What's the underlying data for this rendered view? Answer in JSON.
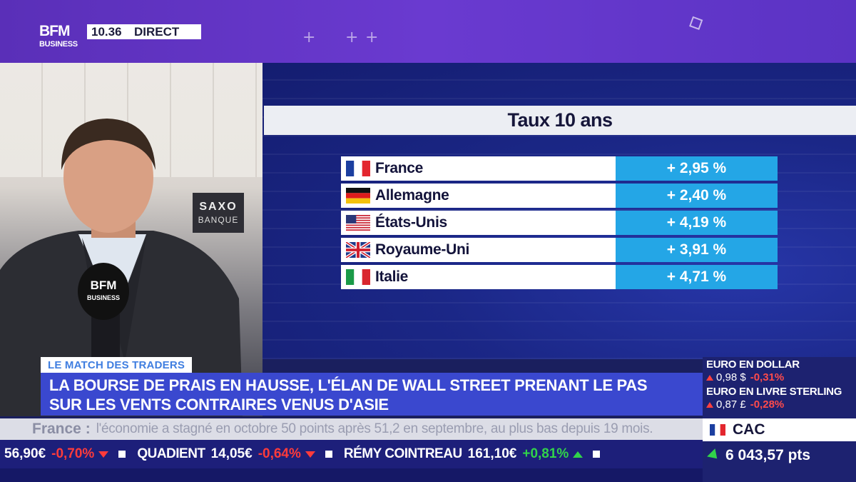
{
  "channel": {
    "logo_line1": "BFM",
    "logo_line2": "BUSINESS",
    "time": "10.36",
    "live": "DIRECT"
  },
  "studio": {
    "sign_line1": "SAXO",
    "sign_line2": "BANQUE",
    "mic_line1": "BFM",
    "mic_line2": "BUSINESS"
  },
  "rates_panel": {
    "title": "Taux 10 ans",
    "rows": [
      {
        "country": "France",
        "flag": "france-flag-icon",
        "value": "+ 2,95 %"
      },
      {
        "country": "Allemagne",
        "flag": "germany-flag-icon",
        "value": "+ 2,40 %"
      },
      {
        "country": "États-Unis",
        "flag": "usa-flag-icon",
        "value": "+ 4,19 %"
      },
      {
        "country": "Royaume-Uni",
        "flag": "uk-flag-icon",
        "value": "+ 3,91 %"
      },
      {
        "country": "Italie",
        "flag": "italy-flag-icon",
        "value": "+ 4,71 %"
      }
    ]
  },
  "lower_third": {
    "tag": "LE MATCH DES TRADERS",
    "headline_line1": "LA BOURSE DE PRAIS EN HAUSSE, L'ÉLAN DE WALL STREET PRENANT LE PAS",
    "headline_line2": "SUR LES VENTS CONTRAIRES VENUS D'ASIE"
  },
  "crawl": {
    "keyword": "France :",
    "text": "l'économie a stagné en octobre 50 points après 51,2 en septembre, au plus bas depuis 19 mois."
  },
  "ticker": [
    {
      "name": "",
      "price": "56,90€",
      "change": "-0,70%",
      "direction": "down"
    },
    {
      "name": "QUADIENT",
      "price": "14,05€",
      "change": "-0,64%",
      "direction": "down"
    },
    {
      "name": "RÉMY COINTREAU",
      "price": "161,10€",
      "change": "+0,81%",
      "direction": "up"
    }
  ],
  "market": {
    "eur_usd": {
      "title": "EURO EN DOLLAR",
      "value": "0,98 $",
      "change": "-0,31%"
    },
    "eur_gbp": {
      "title": "EURO EN LIVRE STERLING",
      "value": "0,87 £",
      "change": "-0,28%"
    },
    "index": {
      "name": "CAC",
      "value": "6 043,57 pts",
      "direction": "up"
    }
  },
  "colors": {
    "accent_purple": "#5a2fb8",
    "rate_blue": "#24a6e6",
    "headline_blue": "#3a48cf",
    "negative": "#ff3b3b",
    "positive": "#31d34a"
  }
}
